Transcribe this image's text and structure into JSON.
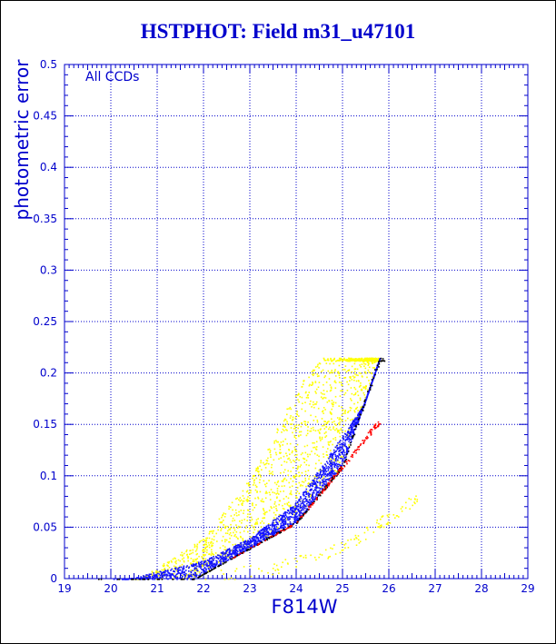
{
  "chart_data": {
    "type": "scatter",
    "title": "HSTPHOT: Field m31_u47101",
    "xlabel": "F814W",
    "ylabel": "photometric error",
    "annotation": "All CCDs",
    "xlim": [
      19,
      29
    ],
    "ylim": [
      0,
      0.5
    ],
    "xticks": [
      "19",
      "20",
      "21",
      "22",
      "23",
      "24",
      "25",
      "26",
      "27",
      "28",
      "29"
    ],
    "yticks": [
      "0",
      "0.05",
      "0.1",
      "0.15",
      "0.2",
      "0.25",
      "0.3",
      "0.35",
      "0.4",
      "0.45",
      "0.5"
    ],
    "grid": true,
    "error_cap": 0.215,
    "colors": {
      "yellow": "#ffff00",
      "blue": "#1414ff",
      "black": "#000000",
      "red": "#ff0000",
      "green": "#00cc44",
      "axis": "#0000cc"
    },
    "series": [
      {
        "color": "yellow",
        "x_range": [
          20.4,
          25.8
        ],
        "sequence": "broad upper envelope",
        "error_at": [
          [
            21,
            0.01
          ],
          [
            22,
            0.035
          ],
          [
            23,
            0.085
          ],
          [
            24,
            0.16
          ],
          [
            25,
            0.215
          ]
        ]
      },
      {
        "color": "blue",
        "x_range": [
          20,
          25.8
        ],
        "sequence": "main locus",
        "error_at": [
          [
            21,
            0.007
          ],
          [
            22,
            0.018
          ],
          [
            23,
            0.04
          ],
          [
            24,
            0.075
          ],
          [
            25,
            0.14
          ]
        ]
      },
      {
        "color": "black",
        "x_range": [
          19.2,
          25.9
        ],
        "sequence": "lower edge",
        "error_at": [
          [
            23,
            0.03
          ],
          [
            24,
            0.055
          ],
          [
            25,
            0.11
          ],
          [
            25.8,
            0.215
          ]
        ]
      },
      {
        "color": "red",
        "x_range": [
          22.5,
          25.8
        ],
        "sequence": "lower edge",
        "error_at": [
          [
            23,
            0.03
          ],
          [
            24,
            0.055
          ],
          [
            25,
            0.11
          ]
        ]
      },
      {
        "color": "yellow",
        "x_range": [
          22,
          26.6
        ],
        "sequence": "faint low-error branch",
        "error_at": [
          [
            22,
            0.002
          ],
          [
            23.5,
            0.01
          ],
          [
            25,
            0.03
          ],
          [
            26,
            0.06
          ]
        ]
      }
    ]
  }
}
